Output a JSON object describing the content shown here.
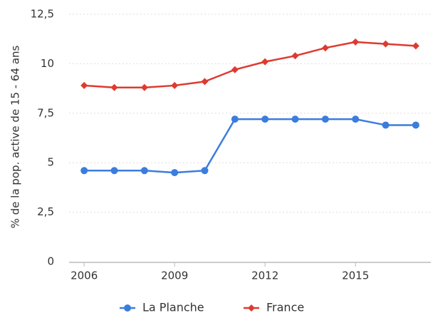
{
  "chart_data": {
    "type": "line",
    "y_label": "% de la pop. active de 15 - 64 ans",
    "x": [
      2006,
      2007,
      2008,
      2009,
      2010,
      2011,
      2012,
      2013,
      2014,
      2015,
      2016,
      2017
    ],
    "series": [
      {
        "name": "La Planche",
        "color": "#3b7ddd",
        "marker": "circle",
        "values": [
          4.6,
          4.6,
          4.6,
          4.5,
          4.6,
          7.2,
          7.2,
          7.2,
          7.2,
          7.2,
          6.9,
          6.9
        ]
      },
      {
        "name": "France",
        "color": "#dd3b30",
        "marker": "diamond",
        "values": [
          8.9,
          8.8,
          8.8,
          8.9,
          9.1,
          9.7,
          10.1,
          10.4,
          10.8,
          11.1,
          11.0,
          10.9
        ]
      }
    ],
    "xlim": [
      2005.5,
      2017.5
    ],
    "xticks": [
      2006,
      2009,
      2012,
      2015
    ],
    "ylim": [
      0,
      12.5
    ],
    "yticks": [
      0,
      {
        "value": 2.5,
        "label": "2,5"
      },
      5,
      {
        "value": 7.5,
        "label": "7,5"
      },
      10,
      {
        "value": 12.5,
        "label": "12,5"
      }
    ],
    "grid": true,
    "legend": "bottom"
  }
}
